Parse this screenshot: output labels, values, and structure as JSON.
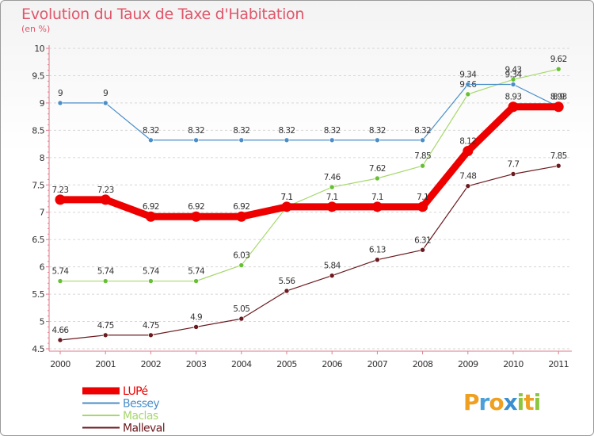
{
  "title": "Evolution du Taux de Taxe d'Habitation",
  "unit_label": "(en %)",
  "logo": {
    "text": "Proxiti",
    "letters": [
      "P",
      "r",
      "o",
      "x",
      "i",
      "t",
      "i"
    ],
    "colors": [
      "#f0a020",
      "#4aa0d8",
      "#f0a020",
      "#3a8fd0",
      "#8cc63f",
      "#f0a020",
      "#8cc63f"
    ]
  },
  "chart_data": {
    "type": "line",
    "x": [
      "2000",
      "2001",
      "2002",
      "2003",
      "2004",
      "2005",
      "2006",
      "2007",
      "2008",
      "2009",
      "2010",
      "2011"
    ],
    "ylim": [
      4.5,
      10
    ],
    "yticks": [
      "4.5",
      "5",
      "5.5",
      "6",
      "6.5",
      "7",
      "7.5",
      "8",
      "8.5",
      "9",
      "9.5",
      "10"
    ],
    "grid": "horizontal-dashed",
    "legend_position": "bottom-left",
    "series": [
      {
        "name": "Malleval",
        "color": "#6b1a1f",
        "values": [
          4.66,
          4.75,
          4.75,
          4.9,
          5.05,
          5.56,
          5.84,
          6.13,
          6.31,
          7.48,
          7.7,
          7.85
        ],
        "labels": [
          "4.66",
          "4.75",
          "4.75",
          "4.9",
          "5.05",
          "5.56",
          "5.84",
          "6.13",
          "6.31",
          "7.48",
          "7.7",
          "7.85"
        ]
      },
      {
        "name": "Maclas",
        "color": "#a6d86b",
        "point_color": "#66c033",
        "values": [
          5.74,
          5.74,
          5.74,
          5.74,
          6.03,
          7.1,
          7.46,
          7.62,
          7.85,
          9.16,
          9.43,
          9.62
        ],
        "labels": [
          "5.74",
          "5.74",
          "5.74",
          "5.74",
          "6.03",
          "7.1",
          "7.46",
          "7.62",
          "7.85",
          "9.16",
          "9.43",
          "9.62"
        ]
      },
      {
        "name": "Bessey",
        "color": "#4a8ec8",
        "values": [
          9,
          9,
          8.32,
          8.32,
          8.32,
          8.32,
          8.32,
          8.32,
          8.32,
          9.34,
          9.34,
          8.93
        ],
        "labels": [
          "9",
          "9",
          "8.32",
          "8.32",
          "8.32",
          "8.32",
          "8.32",
          "8.32",
          "8.32",
          "9.34",
          "9.34",
          "8.93"
        ]
      },
      {
        "name": "LUPé",
        "color": "#ee0000",
        "values": [
          7.23,
          7.23,
          6.92,
          6.92,
          6.92,
          7.1,
          7.1,
          7.1,
          7.1,
          8.12,
          8.93,
          8.93
        ],
        "labels": [
          "7.23",
          "7.23",
          "6.92",
          "6.92",
          "6.92",
          "7.1",
          "7.1",
          "7.1",
          "7.1",
          "8.12",
          "8.93",
          "8.9"
        ]
      }
    ],
    "legend": [
      "LUPé",
      "Bessey",
      "Maclas",
      "Malleval"
    ]
  }
}
